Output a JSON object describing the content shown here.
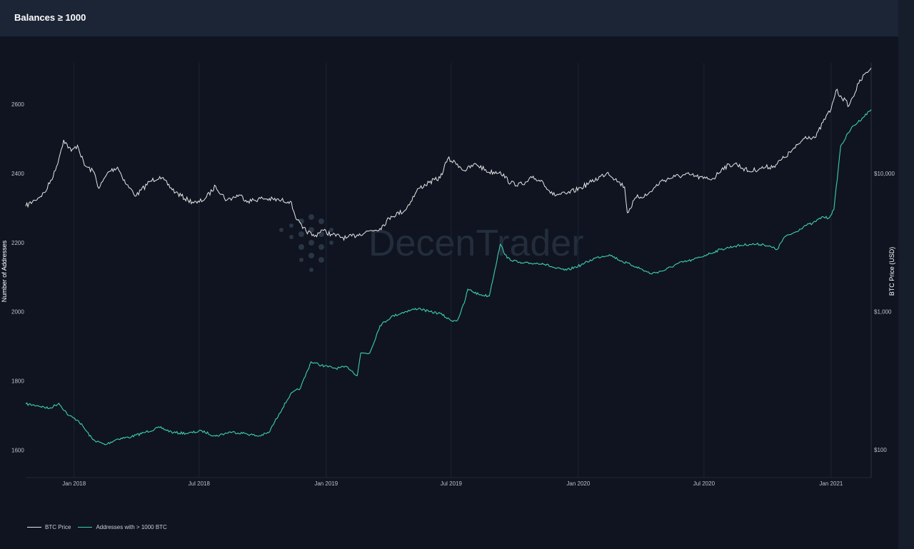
{
  "header": {
    "title": "Balances ≥ 1000"
  },
  "colors": {
    "btc_price": "#e6e6e6",
    "addresses": "#3ecfb0",
    "background": "#0f1420",
    "grid": "#1c2433"
  },
  "watermark": {
    "text": "DecenTrader"
  },
  "chart_data": {
    "type": "line",
    "ylabel_left": "Number of Addresses",
    "ylabel_right": "BTC Price (USD)",
    "x_ticks": [
      "Jan 2018",
      "Jul 2018",
      "Jan 2019",
      "Jul 2019",
      "Jan 2020",
      "Jul 2020",
      "Jan 2021"
    ],
    "y_left_ticks": [
      "2600",
      "2400",
      "2200",
      "2000",
      "1800",
      "1600"
    ],
    "y_left_range": [
      1520,
      2720
    ],
    "y_right_ticks": [
      "$10,000",
      "$1,000",
      "$100"
    ],
    "y_right_scale": "log",
    "x_range": [
      "2017-10-23",
      "2021-02-28"
    ],
    "grid": "vertical",
    "legend_position": "bottom-left",
    "series": [
      {
        "name": "BTC Price",
        "axis": "right",
        "x": [
          "2017-10-23",
          "2017-11-05",
          "2017-11-20",
          "2017-12-05",
          "2017-12-17",
          "2017-12-28",
          "2018-01-06",
          "2018-01-16",
          "2018-01-30",
          "2018-02-06",
          "2018-02-20",
          "2018-03-05",
          "2018-03-18",
          "2018-04-01",
          "2018-04-20",
          "2018-05-05",
          "2018-05-28",
          "2018-06-15",
          "2018-06-28",
          "2018-07-10",
          "2018-07-25",
          "2018-08-10",
          "2018-08-28",
          "2018-09-10",
          "2018-10-01",
          "2018-10-25",
          "2018-11-10",
          "2018-11-20",
          "2018-11-28",
          "2018-12-15",
          "2018-12-25",
          "2019-01-10",
          "2019-01-30",
          "2019-02-15",
          "2019-03-05",
          "2019-03-20",
          "2019-04-05",
          "2019-04-25",
          "2019-05-15",
          "2019-05-30",
          "2019-06-15",
          "2019-06-26",
          "2019-07-10",
          "2019-07-20",
          "2019-08-06",
          "2019-08-25",
          "2019-09-10",
          "2019-09-25",
          "2019-10-15",
          "2019-10-26",
          "2019-11-10",
          "2019-11-25",
          "2019-12-15",
          "2020-01-05",
          "2020-01-20",
          "2020-02-13",
          "2020-02-28",
          "2020-03-08",
          "2020-03-12",
          "2020-03-25",
          "2020-04-10",
          "2020-04-30",
          "2020-05-20",
          "2020-06-10",
          "2020-06-30",
          "2020-07-15",
          "2020-07-28",
          "2020-08-15",
          "2020-09-05",
          "2020-09-20",
          "2020-10-10",
          "2020-10-25",
          "2020-11-10",
          "2020-11-25",
          "2020-12-10",
          "2020-12-20",
          "2021-01-01",
          "2021-01-08",
          "2021-01-15",
          "2021-01-27",
          "2021-02-10",
          "2021-02-21",
          "2021-02-28"
        ],
        "values": [
          5800,
          6400,
          7300,
          10500,
          17500,
          14500,
          16000,
          11500,
          10200,
          7800,
          10300,
          11100,
          8300,
          6900,
          8700,
          9500,
          7300,
          6400,
          6100,
          6600,
          8100,
          6400,
          7000,
          6300,
          6600,
          6400,
          6300,
          4600,
          4000,
          3500,
          3900,
          3600,
          3400,
          3600,
          3850,
          4000,
          4900,
          5400,
          7800,
          8600,
          9300,
          12800,
          11700,
          10500,
          11700,
          10200,
          10300,
          8500,
          8300,
          9300,
          8800,
          7000,
          7100,
          7900,
          8700,
          10200,
          8700,
          8000,
          5200,
          6700,
          7000,
          8800,
          9500,
          9800,
          9200,
          9200,
          11000,
          11800,
          10300,
          10900,
          11300,
          13000,
          15300,
          18500,
          18300,
          23400,
          29300,
          40000,
          36500,
          31000,
          44900,
          54000,
          58000
        ]
      },
      {
        "name": "Addresses with > 1000 BTC",
        "axis": "left",
        "x": [
          "2017-10-23",
          "2017-11-10",
          "2017-11-26",
          "2017-12-10",
          "2017-12-24",
          "2018-01-07",
          "2018-01-15",
          "2018-01-28",
          "2018-02-15",
          "2018-03-05",
          "2018-03-25",
          "2018-04-15",
          "2018-05-05",
          "2018-05-25",
          "2018-06-15",
          "2018-07-05",
          "2018-07-25",
          "2018-08-15",
          "2018-09-05",
          "2018-09-25",
          "2018-10-10",
          "2018-10-25",
          "2018-11-10",
          "2018-11-25",
          "2018-12-10",
          "2018-12-25",
          "2019-01-15",
          "2019-02-01",
          "2019-02-15",
          "2019-02-20",
          "2019-03-05",
          "2019-03-20",
          "2019-04-05",
          "2019-04-25",
          "2019-05-15",
          "2019-05-30",
          "2019-06-15",
          "2019-06-30",
          "2019-07-10",
          "2019-07-20",
          "2019-07-25",
          "2019-08-10",
          "2019-08-25",
          "2019-09-10",
          "2019-09-20",
          "2019-10-10",
          "2019-10-25",
          "2019-11-10",
          "2019-11-30",
          "2019-12-15",
          "2020-01-05",
          "2020-01-25",
          "2020-02-15",
          "2020-03-05",
          "2020-03-25",
          "2020-04-15",
          "2020-05-05",
          "2020-05-25",
          "2020-06-15",
          "2020-07-05",
          "2020-07-25",
          "2020-08-15",
          "2020-09-05",
          "2020-09-25",
          "2020-10-15",
          "2020-10-25",
          "2020-11-10",
          "2020-11-25",
          "2020-12-05",
          "2020-12-20",
          "2020-12-28",
          "2021-01-05",
          "2021-01-15",
          "2021-01-30",
          "2021-02-15",
          "2021-02-28"
        ],
        "values": [
          1733,
          1728,
          1720,
          1735,
          1700,
          1685,
          1665,
          1630,
          1615,
          1632,
          1638,
          1652,
          1665,
          1650,
          1648,
          1655,
          1640,
          1652,
          1648,
          1640,
          1650,
          1705,
          1760,
          1780,
          1855,
          1845,
          1836,
          1840,
          1815,
          1880,
          1880,
          1960,
          1985,
          2000,
          2010,
          2000,
          1995,
          1975,
          1975,
          2025,
          2065,
          2050,
          2045,
          2195,
          2155,
          2140,
          2140,
          2140,
          2125,
          2120,
          2135,
          2155,
          2165,
          2145,
          2130,
          2110,
          2120,
          2140,
          2150,
          2165,
          2180,
          2190,
          2195,
          2195,
          2180,
          2215,
          2230,
          2250,
          2255,
          2275,
          2270,
          2295,
          2480,
          2530,
          2560,
          2585
        ]
      }
    ]
  }
}
